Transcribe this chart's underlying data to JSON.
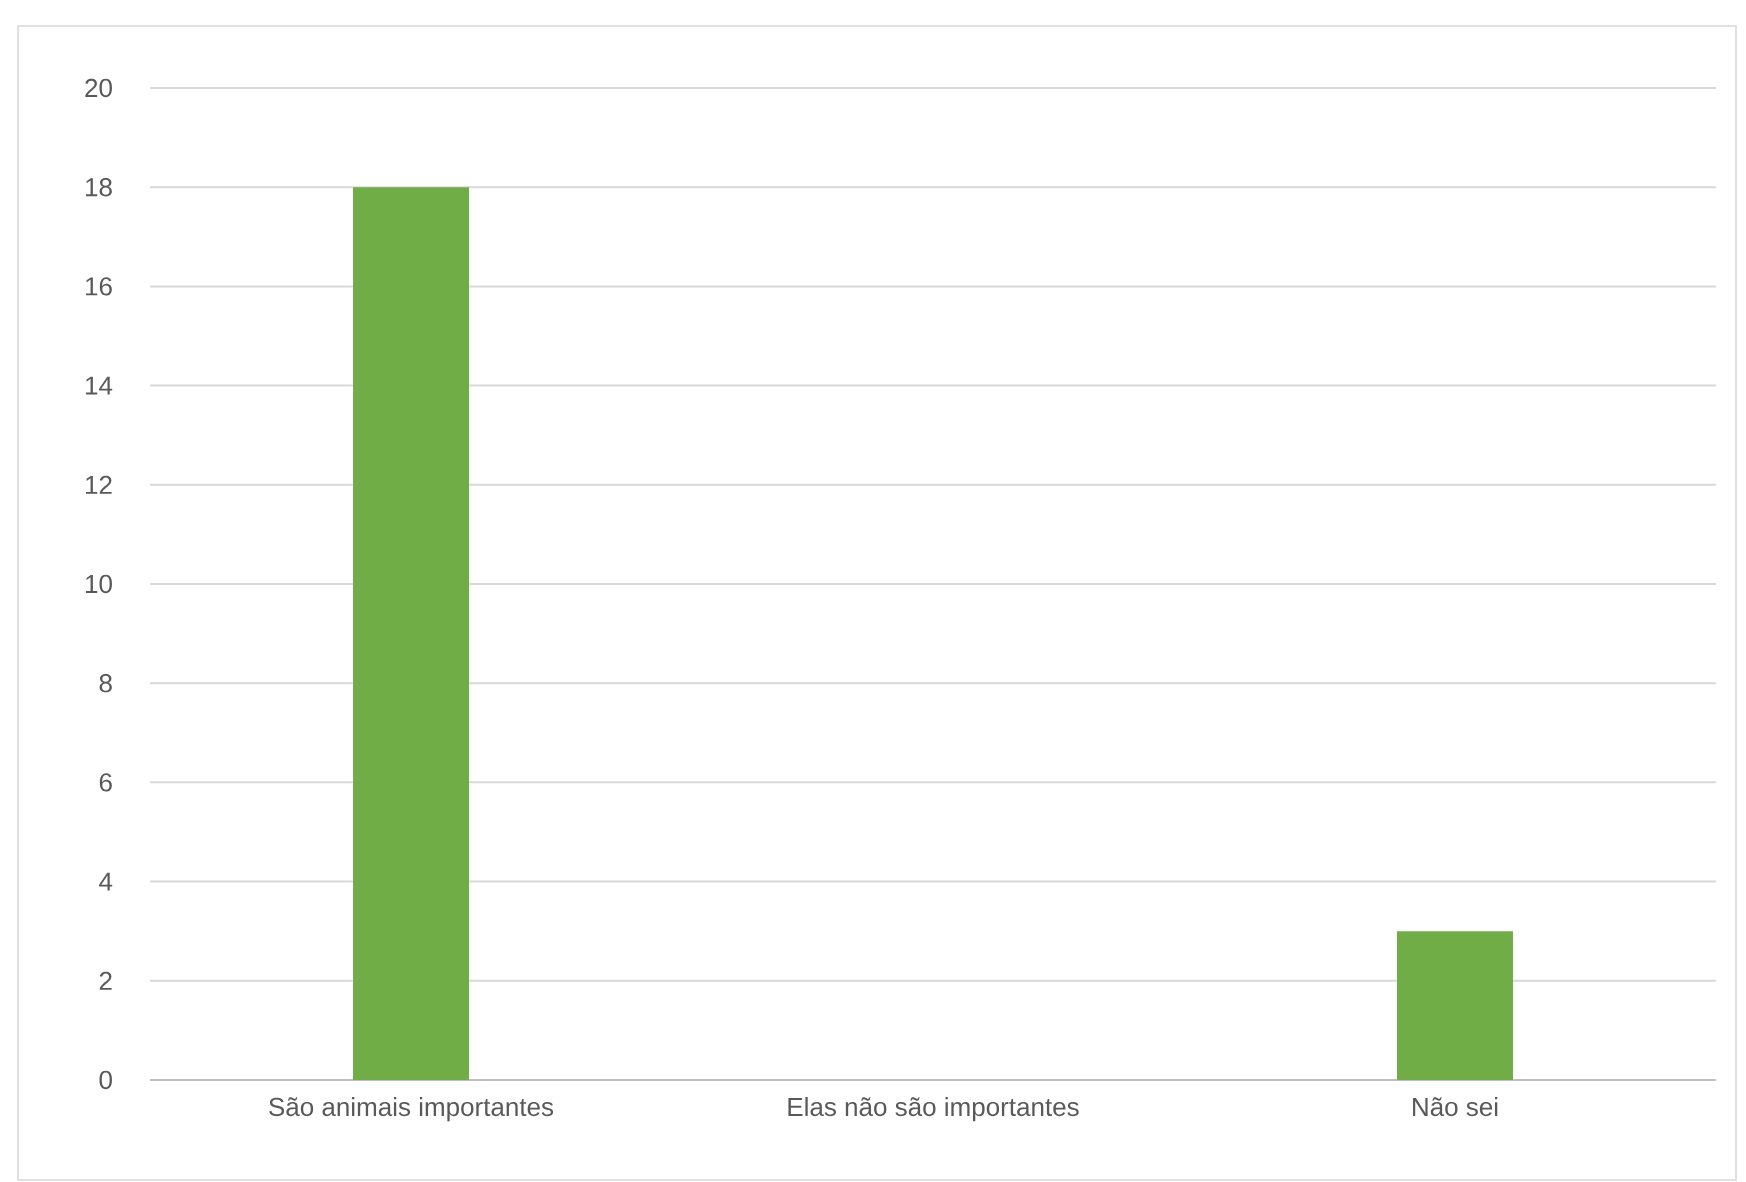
{
  "chart_data": {
    "type": "bar",
    "categories": [
      "São animais importantes",
      "Elas não são importantes",
      "Não sei"
    ],
    "values": [
      18,
      0,
      3
    ],
    "color": "#70ad47",
    "ylim": [
      0,
      20
    ],
    "yticks": [
      0,
      2,
      4,
      6,
      8,
      10,
      12,
      14,
      16,
      18,
      20
    ],
    "grid": "y"
  }
}
